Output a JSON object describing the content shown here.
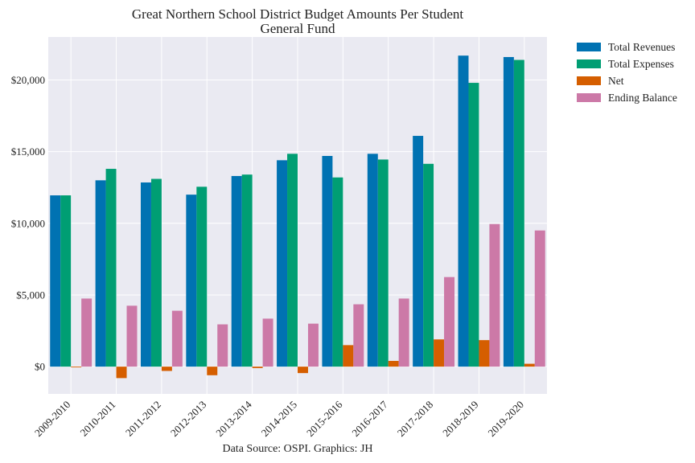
{
  "chart_data": {
    "type": "bar",
    "title": "Great Northern School District Budget Amounts Per Student",
    "subtitle": "General Fund",
    "source_note": "Data Source: OSPI. Graphics: JH",
    "categories": [
      "2009-2010",
      "2010-2011",
      "2011-2012",
      "2012-2013",
      "2013-2014",
      "2014-2015",
      "2015-2016",
      "2016-2017",
      "2017-2018",
      "2018-2019",
      "2019-2020"
    ],
    "series": [
      {
        "name": "Total Revenues",
        "color": "#0072B2",
        "values": [
          11950,
          13000,
          12850,
          12000,
          13300,
          14400,
          14700,
          14850,
          16100,
          21700,
          21600
        ]
      },
      {
        "name": "Total Expenses",
        "color": "#009E73",
        "values": [
          11950,
          13800,
          13100,
          12550,
          13400,
          14850,
          13200,
          14450,
          14150,
          19800,
          21400
        ]
      },
      {
        "name": "Net",
        "color": "#D55E00",
        "values": [
          -50,
          -800,
          -300,
          -600,
          -100,
          -450,
          1500,
          400,
          1900,
          1850,
          200
        ]
      },
      {
        "name": "Ending Balance",
        "color": "#CC79A7",
        "values": [
          4750,
          4250,
          3900,
          2950,
          3350,
          3000,
          4350,
          4750,
          6250,
          9950,
          9500
        ]
      }
    ],
    "ylim": [
      -1900,
      23000
    ],
    "yticks": [
      0,
      5000,
      10000,
      15000,
      20000
    ],
    "ytick_labels": [
      "$0",
      "$5,000",
      "$10,000",
      "$15,000",
      "$20,000"
    ],
    "xlabel": "",
    "ylabel": "",
    "grid": true,
    "legend": "outside-top-right",
    "background": "#EAEAF2"
  }
}
